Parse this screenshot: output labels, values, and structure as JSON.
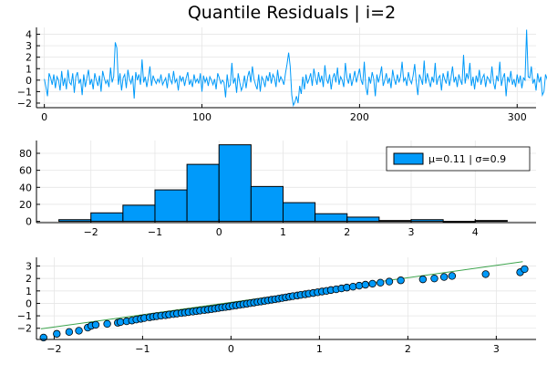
{
  "colors": {
    "series": "#009AFA",
    "line": "#3DA44D",
    "axis": "#000000",
    "grid": "#E6E6E6",
    "bar_edge": "#000000"
  },
  "chart_data": [
    {
      "type": "line",
      "title": "Quantile Residuals | i=2",
      "xlim": [
        -5,
        312
      ],
      "ylim": [
        -2.4,
        4.6
      ],
      "xticks": [
        0,
        100,
        200,
        300
      ],
      "yticks": [
        -2,
        -1,
        0,
        1,
        2,
        3,
        4
      ],
      "grid": true,
      "series": [
        {
          "values": [
            0.1,
            -0.6,
            -1.4,
            0.6,
            0.2,
            -0.4,
            0.5,
            -0.7,
            0.3,
            0.0,
            -0.9,
            0.8,
            -0.5,
            0.2,
            -0.8,
            0.9,
            -0.2,
            -0.4,
            0.6,
            -1.1,
            0.3,
            0.7,
            -0.3,
            0.1,
            -1.3,
            0.5,
            -0.6,
            0.2,
            0.9,
            -0.4,
            0.1,
            -0.8,
            0.6,
            0.0,
            -0.5,
            0.4,
            -1.0,
            0.8,
            0.2,
            -0.3,
            0.0,
            -0.6,
            1.1,
            -0.2,
            0.3,
            3.3,
            2.8,
            -0.4,
            0.6,
            -0.9,
            0.2,
            0.5,
            -0.7,
            0.9,
            0.1,
            -0.3,
            0.4,
            -1.6,
            0.7,
            0.0,
            0.5,
            -0.4,
            1.8,
            -0.2,
            0.3,
            -0.6,
            0.2,
            1.2,
            -0.5,
            0.4,
            0.0,
            -0.3,
            0.1,
            -0.2,
            0.5,
            -0.4,
            -0.1,
            0.2,
            -0.7,
            0.6,
            0.0,
            -0.3,
            0.8,
            -0.2,
            0.1,
            -0.9,
            0.4,
            -0.1,
            0.3,
            -0.5,
            0.2,
            0.7,
            -0.4,
            0.0,
            -0.6,
            0.5,
            -0.2,
            0.1,
            -0.3,
            0.6,
            -1.0,
            0.4,
            -0.2,
            0.2,
            -0.5,
            0.3,
            0.0,
            -0.4,
            0.1,
            -0.8,
            0.6,
            0.2,
            -0.3,
            0.0,
            -0.2,
            -1.5,
            0.5,
            -0.6,
            -0.4,
            1.5,
            -0.3,
            0.2,
            -1.1,
            0.6,
            -0.2,
            -0.9,
            -0.5,
            0.4,
            -0.7,
            0.3,
            0.8,
            -0.2,
            1.2,
            0.1,
            -0.4,
            -0.8,
            0.5,
            -1.0,
            0.3,
            0.0,
            -0.6,
            0.4,
            -0.1,
            0.7,
            -0.3,
            0.5,
            0.2,
            -0.6,
            0.9,
            -0.2,
            0.3,
            0.0,
            -0.4,
            0.6,
            1.4,
            2.4,
            1.2,
            -1.3,
            -2.2,
            -1.9,
            -1.4,
            -2.0,
            -0.5,
            -1.2,
            0.3,
            -0.8,
            0.5,
            -0.3,
            0.1,
            0.6,
            -0.5,
            1.0,
            0.2,
            -0.4,
            0.7,
            -0.2,
            0.4,
            -0.6,
            1.3,
            0.1,
            -0.3,
            0.5,
            -0.8,
            0.2,
            0.6,
            -0.2,
            1.1,
            -0.4,
            0.3,
            0.0,
            -0.6,
            1.5,
            0.2,
            -0.3,
            0.6,
            -0.5,
            0.1,
            0.8,
            -0.2,
            0.4,
            1.0,
            0.0,
            -0.4,
            1.6,
            -0.6,
            -1.3,
            0.3,
            -0.3,
            0.7,
            0.1,
            -1.4,
            0.5,
            -0.2,
            0.4,
            1.2,
            -0.5,
            0.0,
            0.6,
            -0.3,
            0.2,
            -0.7,
            0.9,
            0.1,
            -0.4,
            0.5,
            -0.2,
            0.3,
            1.6,
            -0.1,
            0.2,
            -0.5,
            0.7,
            0.0,
            -0.3,
            0.4,
            1.4,
            -0.2,
            -1.3,
            0.5,
            0.1,
            -0.4,
            1.7,
            -0.3,
            0.6,
            0.0,
            -0.6,
            0.3,
            -0.2,
            1.5,
            -0.4,
            0.2,
            0.4,
            -0.9,
            0.6,
            0.1,
            -0.3,
            0.8,
            -0.5,
            0.2,
            1.2,
            -0.2,
            0.3,
            -0.6,
            0.5,
            0.0,
            -0.4,
            2.2,
            -0.3,
            0.6,
            0.1,
            1.5,
            -0.5,
            0.3,
            -0.8,
            0.4,
            -0.2,
            0.9,
            -0.4,
            0.2,
            0.5,
            -0.6,
            0.3,
            0.1,
            -0.3,
            1.2,
            -0.2,
            -0.8,
            0.4,
            -0.1,
            1.6,
            -0.5,
            0.2,
            0.6,
            -1.4,
            0.3,
            -0.2,
            0.8,
            -0.4,
            0.1,
            -0.6,
            0.5,
            -0.3,
            0.4,
            -0.7,
            0.2,
            0.0,
            4.4,
            0.3,
            0.2,
            1.2,
            -0.3,
            0.1,
            -0.9,
            0.6,
            -0.2,
            0.3,
            -1.3,
            -1.0,
            0.5,
            0.1,
            -0.5,
            0.9,
            0.2,
            -0.1
          ]
        }
      ]
    },
    {
      "type": "bar",
      "xlim": [
        -2.85,
        4.95
      ],
      "ylim": [
        -1.5,
        95
      ],
      "xticks": [
        -2,
        -1,
        0,
        1,
        2,
        3,
        4
      ],
      "yticks": [
        0,
        20,
        40,
        60,
        80
      ],
      "grid": true,
      "bin_width": 0.5,
      "bin_starts": [
        -2.5,
        -2.0,
        -1.5,
        -1.0,
        -0.5,
        0.0,
        0.5,
        1.0,
        1.5,
        2.0,
        2.5,
        3.0,
        3.5,
        4.0
      ],
      "values": [
        2,
        10,
        19,
        37,
        67,
        90,
        41,
        22,
        9,
        5,
        1,
        2,
        0,
        1
      ],
      "legend": {
        "label": "μ=0.11 | σ=0.9",
        "placement": "top-right"
      }
    },
    {
      "type": "scatter",
      "xlim": [
        -2.2,
        3.45
      ],
      "ylim": [
        -2.9,
        3.7
      ],
      "xticks": [
        -2,
        -1,
        0,
        1,
        2,
        3
      ],
      "yticks": [
        -2,
        -1,
        0,
        1,
        2,
        3
      ],
      "grid": true,
      "reference_line": {
        "x": [
          -2.15,
          3.3
        ],
        "y": [
          -2.05,
          3.35
        ]
      },
      "points": [
        [
          -2.12,
          -2.75
        ],
        [
          -1.97,
          -2.45
        ],
        [
          -1.83,
          -2.3
        ],
        [
          -1.72,
          -2.2
        ],
        [
          -1.62,
          -1.95
        ],
        [
          -1.58,
          -1.8
        ],
        [
          -1.53,
          -1.72
        ],
        [
          -1.4,
          -1.65
        ],
        [
          -1.28,
          -1.56
        ],
        [
          -1.25,
          -1.5
        ],
        [
          -1.18,
          -1.44
        ],
        [
          -1.12,
          -1.38
        ],
        [
          -1.07,
          -1.3
        ],
        [
          -1.02,
          -1.24
        ],
        [
          -0.98,
          -1.18
        ],
        [
          -0.92,
          -1.12
        ],
        [
          -0.88,
          -1.07
        ],
        [
          -0.84,
          -1.03
        ],
        [
          -0.79,
          -0.99
        ],
        [
          -0.74,
          -0.95
        ],
        [
          -0.7,
          -0.9
        ],
        [
          -0.65,
          -0.86
        ],
        [
          -0.61,
          -0.82
        ],
        [
          -0.56,
          -0.78
        ],
        [
          -0.52,
          -0.74
        ],
        [
          -0.48,
          -0.7
        ],
        [
          -0.43,
          -0.66
        ],
        [
          -0.39,
          -0.62
        ],
        [
          -0.35,
          -0.58
        ],
        [
          -0.3,
          -0.54
        ],
        [
          -0.26,
          -0.5
        ],
        [
          -0.22,
          -0.46
        ],
        [
          -0.18,
          -0.42
        ],
        [
          -0.14,
          -0.37
        ],
        [
          -0.1,
          -0.33
        ],
        [
          -0.06,
          -0.29
        ],
        [
          -0.02,
          -0.25
        ],
        [
          0.02,
          -0.2
        ],
        [
          0.06,
          -0.16
        ],
        [
          0.1,
          -0.12
        ],
        [
          0.14,
          -0.07
        ],
        [
          0.18,
          -0.03
        ],
        [
          0.22,
          0.02
        ],
        [
          0.26,
          0.06
        ],
        [
          0.3,
          0.11
        ],
        [
          0.34,
          0.15
        ],
        [
          0.38,
          0.2
        ],
        [
          0.42,
          0.24
        ],
        [
          0.46,
          0.29
        ],
        [
          0.5,
          0.33
        ],
        [
          0.54,
          0.38
        ],
        [
          0.58,
          0.43
        ],
        [
          0.62,
          0.48
        ],
        [
          0.66,
          0.53
        ],
        [
          0.7,
          0.58
        ],
        [
          0.75,
          0.63
        ],
        [
          0.79,
          0.68
        ],
        [
          0.84,
          0.73
        ],
        [
          0.88,
          0.78
        ],
        [
          0.93,
          0.83
        ],
        [
          0.98,
          0.89
        ],
        [
          1.03,
          0.95
        ],
        [
          1.08,
          1.0
        ],
        [
          1.13,
          1.07
        ],
        [
          1.19,
          1.13
        ],
        [
          1.25,
          1.2
        ],
        [
          1.31,
          1.27
        ],
        [
          1.38,
          1.34
        ],
        [
          1.45,
          1.42
        ],
        [
          1.52,
          1.5
        ],
        [
          1.6,
          1.58
        ],
        [
          1.69,
          1.66
        ],
        [
          1.79,
          1.75
        ],
        [
          1.92,
          1.85
        ],
        [
          2.17,
          1.93
        ],
        [
          2.3,
          2.0
        ],
        [
          2.41,
          2.12
        ],
        [
          2.5,
          2.2
        ],
        [
          2.88,
          2.35
        ],
        [
          3.27,
          2.5
        ],
        [
          3.32,
          2.75
        ]
      ]
    }
  ]
}
